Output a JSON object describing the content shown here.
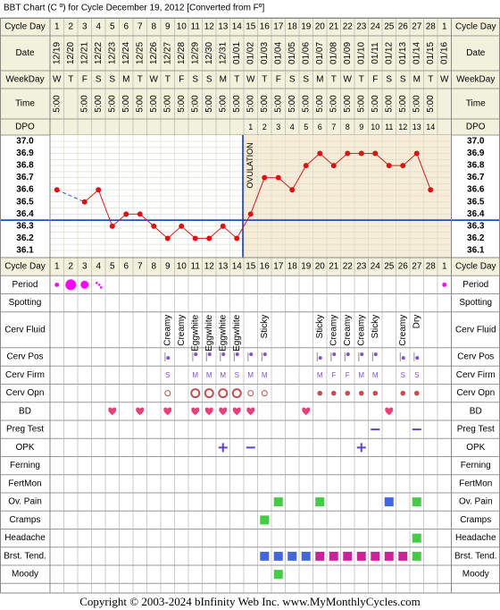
{
  "title": "BBT Chart (C º) for Cycle December 19, 2012  [Converted from Fº]",
  "row_labels": {
    "cycle_day": "Cycle Day",
    "date": "Date",
    "weekday": "WeekDay",
    "time": "Time",
    "dpo": "DPO"
  },
  "ovulation_label": "OVULATION",
  "copyright": "Copyright © 2003-2024 bInfinity Web Inc.    www.MyMonthlyCycles.com",
  "chart_data": {
    "type": "line",
    "x": [
      1,
      2,
      3,
      4,
      5,
      6,
      7,
      8,
      9,
      10,
      11,
      12,
      13,
      14,
      15,
      16,
      17,
      18,
      19,
      20,
      21,
      22,
      23,
      24,
      25,
      26,
      27,
      28,
      1
    ],
    "dates": [
      "12/19",
      "12/20",
      "12/21",
      "12/22",
      "12/23",
      "12/24",
      "12/25",
      "12/26",
      "12/27",
      "12/28",
      "12/29",
      "12/30",
      "12/31",
      "01/01",
      "01/02",
      "01/03",
      "01/04",
      "01/05",
      "01/06",
      "01/07",
      "01/08",
      "01/09",
      "01/10",
      "01/11",
      "01/12",
      "01/13",
      "01/14",
      "01/15",
      "01/16"
    ],
    "weekdays": [
      "W",
      "T",
      "F",
      "S",
      "S",
      "M",
      "T",
      "W",
      "T",
      "F",
      "S",
      "S",
      "M",
      "T",
      "W",
      "T",
      "F",
      "S",
      "S",
      "M",
      "T",
      "W",
      "T",
      "F",
      "S",
      "S",
      "M",
      "T",
      "W"
    ],
    "times": [
      "5:00",
      "",
      "5:00",
      "5:00",
      "5:00",
      "5:00",
      "5:00",
      "5:00",
      "5:00",
      "5:00",
      "5:00",
      "5:00",
      "5:00",
      "5:00",
      "5:00",
      "5:00",
      "5:00",
      "5:00",
      "5:00",
      "5:00",
      "5:00",
      "5:00",
      "5:00",
      "5:00",
      "5:00",
      "5:00",
      "5:00",
      "5:00",
      ""
    ],
    "dpo": [
      "",
      "",
      "",
      "",
      "",
      "",
      "",
      "",
      "",
      "",
      "",
      "",
      "",
      "",
      "1",
      "2",
      "3",
      "4",
      "5",
      "6",
      "7",
      "8",
      "9",
      "10",
      "11",
      "12",
      "13",
      "14",
      ""
    ],
    "temps": [
      36.6,
      null,
      36.5,
      36.6,
      36.3,
      36.4,
      36.4,
      36.3,
      36.2,
      36.3,
      36.2,
      36.2,
      36.3,
      36.2,
      36.4,
      36.7,
      36.7,
      36.6,
      36.8,
      36.9,
      36.8,
      36.9,
      36.9,
      36.9,
      36.8,
      36.8,
      36.9,
      36.6,
      null
    ],
    "y_ticks": [
      "37.0",
      "36.9",
      "36.8",
      "36.7",
      "36.6",
      "36.5",
      "36.4",
      "36.3",
      "36.2",
      "36.1"
    ],
    "ylim": [
      36.1,
      37.0
    ],
    "coverline": 36.35,
    "ovulation_day": 14,
    "grid": true,
    "series": [
      {
        "values": [
          36.6,
          null,
          36.5,
          36.6,
          36.3,
          36.4,
          36.4,
          36.3,
          36.2,
          36.3,
          36.2,
          36.2,
          36.3,
          36.2,
          36.4,
          36.7,
          36.7,
          36.6,
          36.8,
          36.9,
          36.8,
          36.9,
          36.9,
          36.9,
          36.8,
          36.8,
          36.9,
          36.6,
          null
        ]
      }
    ]
  },
  "tracking": {
    "rows": [
      {
        "label": "Cycle Day",
        "type": "cycleday"
      },
      {
        "label": "Period",
        "type": "period",
        "entries": {
          "1": "spot",
          "2": "heavy",
          "3": "medium",
          "4": "light",
          "29": "spot"
        }
      },
      {
        "label": "Spotting",
        "type": "empty"
      },
      {
        "label": "Cerv Fluid",
        "type": "vtext",
        "entries": {
          "9": "Creamy",
          "10": "Creamy",
          "11": "Eggwhite",
          "12": "Eggwhite",
          "13": "Eggwhite",
          "14": "Eggwhite",
          "16": "Sticky",
          "20": "Sticky",
          "21": "Creamy",
          "22": "Creamy",
          "23": "Creamy",
          "24": "Sticky",
          "26": "Creamy",
          "27": "Dry"
        }
      },
      {
        "label": "Cerv Pos",
        "type": "pos",
        "entries": {
          "9": "low",
          "11": "mid",
          "12": "mid",
          "13": "mid",
          "14": "mid",
          "15": "mid",
          "16": "mid",
          "20": "low",
          "21": "mid",
          "22": "mid",
          "23": "mid",
          "24": "mid",
          "26": "low",
          "27": "low"
        }
      },
      {
        "label": "Cerv Firm",
        "type": "letter",
        "entries": {
          "9": "S",
          "11": "M",
          "12": "M",
          "13": "M",
          "14": "S",
          "15": "M",
          "16": "M",
          "20": "M",
          "21": "F",
          "22": "F",
          "23": "M",
          "24": "M",
          "26": "S",
          "27": "S"
        }
      },
      {
        "label": "Cerv Opn",
        "type": "open",
        "entries": {
          "9": "small",
          "11": "large",
          "12": "large",
          "13": "large",
          "14": "large",
          "15": "small",
          "16": "small",
          "20": "closed",
          "21": "closed",
          "22": "closed",
          "23": "closed",
          "24": "closed",
          "26": "closed",
          "27": "closed"
        }
      },
      {
        "label": "BD",
        "type": "heart",
        "entries": {
          "5": 1,
          "7": 1,
          "9": 1,
          "11": 1,
          "12": 1,
          "13": 1,
          "14": 1,
          "15": 1,
          "19": 1,
          "25": 1
        }
      },
      {
        "label": "Preg Test",
        "type": "sign",
        "entries": {
          "24": "-",
          "27": "-"
        }
      },
      {
        "label": "OPK",
        "type": "sign",
        "entries": {
          "13": "+",
          "15": "-",
          "23": "+"
        }
      },
      {
        "label": "Ferning",
        "type": "empty"
      },
      {
        "label": "FertMon",
        "type": "empty"
      },
      {
        "label": "Ov. Pain",
        "type": "square",
        "entries": {
          "17": "green",
          "20": "green",
          "25": "blue",
          "27": "green"
        }
      },
      {
        "label": "Cramps",
        "type": "square",
        "entries": {
          "16": "green"
        }
      },
      {
        "label": "Headache",
        "type": "square",
        "entries": {
          "27": "green"
        }
      },
      {
        "label": "Brst. Tend.",
        "type": "square",
        "entries": {
          "16": "blue",
          "17": "blue",
          "18": "blue",
          "19": "blue",
          "20": "magenta",
          "21": "magenta",
          "22": "magenta",
          "23": "magenta",
          "24": "magenta",
          "25": "magenta",
          "26": "magenta",
          "27": "green"
        }
      },
      {
        "label": "Moody",
        "type": "square",
        "entries": {
          "17": "green"
        }
      }
    ]
  },
  "colors": {
    "header_bg": "#f2f2dc",
    "grid_line": "#d8d8c8",
    "temp_line": "#d02020",
    "marker": "#e01010",
    "coverline": "#0030c0",
    "luteal_bg": "#f7ecd8",
    "period": "#ff00ff",
    "heart": "#e8407a",
    "opk": "#6040d0",
    "green": "#44cc44",
    "blue": "#4466dd",
    "magenta": "#cc2299",
    "cm_purple": "#8050d0",
    "cm_gray": "#a0a0a0",
    "cm_rose": "#c05050"
  }
}
